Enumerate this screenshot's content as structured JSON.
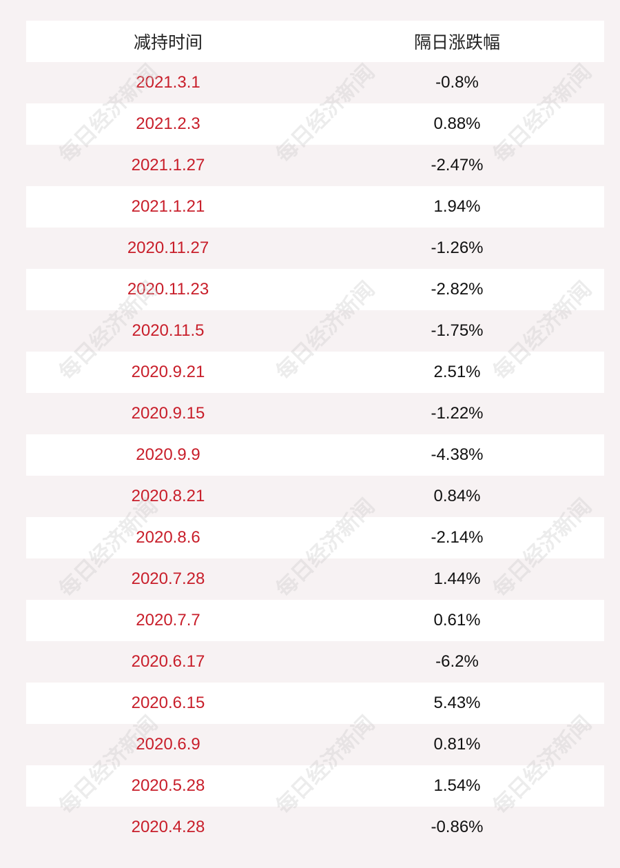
{
  "table": {
    "headers": {
      "date": "减持时间",
      "change": "隔日涨跌幅"
    },
    "rows": [
      {
        "date": "2021.3.1",
        "change": "-0.8%"
      },
      {
        "date": "2021.2.3",
        "change": "0.88%"
      },
      {
        "date": "2021.1.27",
        "change": "-2.47%"
      },
      {
        "date": "2021.1.21",
        "change": "1.94%"
      },
      {
        "date": "2020.11.27",
        "change": "-1.26%"
      },
      {
        "date": "2020.11.23",
        "change": "-2.82%"
      },
      {
        "date": "2020.11.5",
        "change": "-1.75%"
      },
      {
        "date": "2020.9.21",
        "change": "2.51%"
      },
      {
        "date": "2020.9.15",
        "change": "-1.22%"
      },
      {
        "date": "2020.9.9",
        "change": "-4.38%"
      },
      {
        "date": "2020.8.21",
        "change": "0.84%"
      },
      {
        "date": "2020.8.6",
        "change": "-2.14%"
      },
      {
        "date": "2020.7.28",
        "change": "1.44%"
      },
      {
        "date": "2020.7.7",
        "change": "0.61%"
      },
      {
        "date": "2020.6.17",
        "change": "-6.2%"
      },
      {
        "date": "2020.6.15",
        "change": "5.43%"
      },
      {
        "date": "2020.6.9",
        "change": "0.81%"
      },
      {
        "date": "2020.5.28",
        "change": "1.54%"
      },
      {
        "date": "2020.4.28",
        "change": "-0.86%"
      }
    ]
  },
  "watermark": {
    "text": "每日经济新闻"
  },
  "colors": {
    "date_text": "#c81e2a",
    "background": "#f7f2f3",
    "stripe": "#ffffff"
  }
}
